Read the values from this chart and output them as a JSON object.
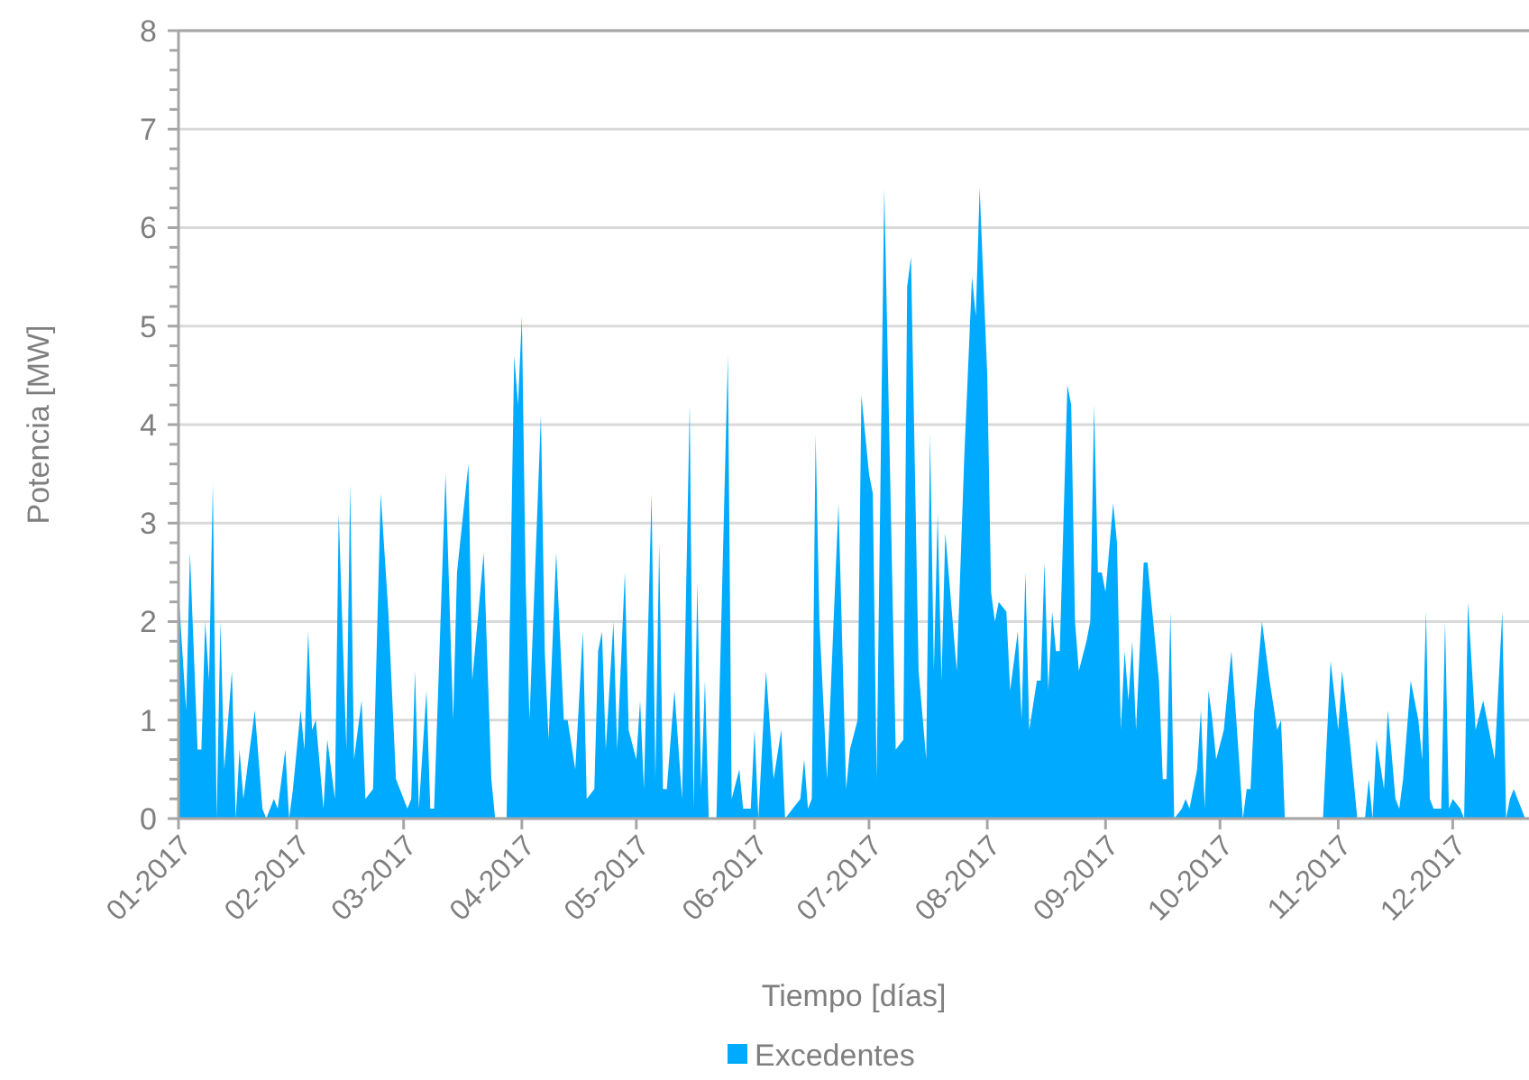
{
  "chart_data": {
    "type": "area",
    "xlabel": "Tiempo [días]",
    "ylabel": "Potencia [MW]",
    "xlim": [
      "2017-01-01",
      "2017-12-21"
    ],
    "ylim": [
      0,
      8
    ],
    "xticks": [
      {
        "value": "2017-01-01",
        "label": "01-2017"
      },
      {
        "value": "2017-02-01",
        "label": "02-2017"
      },
      {
        "value": "2017-03-01",
        "label": "03-2017"
      },
      {
        "value": "2017-04-01",
        "label": "04-2017"
      },
      {
        "value": "2017-05-01",
        "label": "05-2017"
      },
      {
        "value": "2017-06-01",
        "label": "06-2017"
      },
      {
        "value": "2017-07-01",
        "label": "07-2017"
      },
      {
        "value": "2017-08-01",
        "label": "08-2017"
      },
      {
        "value": "2017-09-01",
        "label": "09-2017"
      },
      {
        "value": "2017-10-01",
        "label": "10-2017"
      },
      {
        "value": "2017-11-01",
        "label": "11-2017"
      },
      {
        "value": "2017-12-01",
        "label": "12-2017"
      }
    ],
    "yticks": [
      0,
      {
        "value": 0.2,
        "label": null
      },
      {
        "value": 0.4,
        "label": null
      },
      {
        "value": 0.6,
        "label": null
      },
      {
        "value": 0.8,
        "label": null
      },
      1,
      {
        "value": 1.2,
        "label": null
      },
      {
        "value": 1.4,
        "label": null
      },
      {
        "value": 1.6,
        "label": null
      },
      {
        "value": 1.8,
        "label": null
      },
      2,
      {
        "value": 2.2,
        "label": null
      },
      {
        "value": 2.4,
        "label": null
      },
      {
        "value": 2.6,
        "label": null
      },
      {
        "value": 2.8,
        "label": null
      },
      3,
      {
        "value": 3.2,
        "label": null
      },
      {
        "value": 3.4,
        "label": null
      },
      {
        "value": 3.6,
        "label": null
      },
      {
        "value": 3.8,
        "label": null
      },
      4,
      {
        "value": 4.2,
        "label": null
      },
      {
        "value": 4.4,
        "label": null
      },
      {
        "value": 4.6,
        "label": null
      },
      {
        "value": 4.8,
        "label": null
      },
      5,
      {
        "value": 5.2,
        "label": null
      },
      {
        "value": 5.4,
        "label": null
      },
      {
        "value": 5.6,
        "label": null
      },
      {
        "value": 5.8,
        "label": null
      },
      6,
      {
        "value": 6.2,
        "label": null
      },
      {
        "value": 6.4,
        "label": null
      },
      {
        "value": 6.6,
        "label": null
      },
      {
        "value": 6.8,
        "label": null
      },
      7,
      {
        "value": 7.2,
        "label": null
      },
      {
        "value": 7.4,
        "label": null
      },
      {
        "value": 7.6,
        "label": null
      },
      {
        "value": 7.8,
        "label": null
      },
      8
    ],
    "grid": "y",
    "legend": "bottom",
    "series": [
      {
        "name": "Excedentes",
        "color": "#00aaff",
        "x": [
          "2017-01-01",
          "2017-01-03",
          "2017-01-04",
          "2017-01-06",
          "2017-01-07",
          "2017-01-08",
          "2017-01-09",
          "2017-01-10",
          "2017-01-11",
          "2017-01-12",
          "2017-01-13",
          "2017-01-15",
          "2017-01-16",
          "2017-01-17",
          "2017-01-18",
          "2017-01-21",
          "2017-01-23",
          "2017-01-24",
          "2017-01-26",
          "2017-01-27",
          "2017-01-29",
          "2017-01-30",
          "2017-01-31",
          "2017-02-02",
          "2017-02-03",
          "2017-02-04",
          "2017-02-05",
          "2017-02-06",
          "2017-02-08",
          "2017-02-09",
          "2017-02-11",
          "2017-02-12",
          "2017-02-14",
          "2017-02-15",
          "2017-02-16",
          "2017-02-18",
          "2017-02-19",
          "2017-02-21",
          "2017-02-23",
          "2017-02-25",
          "2017-02-27",
          "2017-03-02",
          "2017-03-03",
          "2017-03-04",
          "2017-03-05",
          "2017-03-07",
          "2017-03-08",
          "2017-03-09",
          "2017-03-12",
          "2017-03-14",
          "2017-03-15",
          "2017-03-18",
          "2017-03-19",
          "2017-03-22",
          "2017-03-24",
          "2017-03-25",
          "2017-03-28",
          "2017-03-30",
          "2017-03-31",
          "2017-04-01",
          "2017-04-02",
          "2017-04-03",
          "2017-04-06",
          "2017-04-07",
          "2017-04-08",
          "2017-04-10",
          "2017-04-12",
          "2017-04-13",
          "2017-04-15",
          "2017-04-17",
          "2017-04-18",
          "2017-04-20",
          "2017-04-21",
          "2017-04-22",
          "2017-04-23",
          "2017-04-25",
          "2017-04-26",
          "2017-04-28",
          "2017-04-29",
          "2017-05-01",
          "2017-05-02",
          "2017-05-03",
          "2017-05-05",
          "2017-05-06",
          "2017-05-07",
          "2017-05-08",
          "2017-05-09",
          "2017-05-11",
          "2017-05-13",
          "2017-05-15",
          "2017-05-16",
          "2017-05-17",
          "2017-05-18",
          "2017-05-19",
          "2017-05-20",
          "2017-05-22",
          "2017-05-25",
          "2017-05-26",
          "2017-05-28",
          "2017-05-29",
          "2017-05-31",
          "2017-06-01",
          "2017-06-02",
          "2017-06-04",
          "2017-06-06",
          "2017-06-08",
          "2017-06-09",
          "2017-06-11",
          "2017-06-13",
          "2017-06-14",
          "2017-06-15",
          "2017-06-16",
          "2017-06-17",
          "2017-06-18",
          "2017-06-20",
          "2017-06-23",
          "2017-06-25",
          "2017-06-26",
          "2017-06-28",
          "2017-06-29",
          "2017-07-01",
          "2017-07-02",
          "2017-07-03",
          "2017-07-05",
          "2017-07-08",
          "2017-07-10",
          "2017-07-11",
          "2017-07-12",
          "2017-07-14",
          "2017-07-16",
          "2017-07-17",
          "2017-07-18",
          "2017-07-19",
          "2017-07-20",
          "2017-07-21",
          "2017-07-24",
          "2017-07-26",
          "2017-07-28",
          "2017-07-29",
          "2017-07-30",
          "2017-08-01",
          "2017-08-02",
          "2017-08-03",
          "2017-08-04",
          "2017-08-06",
          "2017-08-07",
          "2017-08-09",
          "2017-08-10",
          "2017-08-11",
          "2017-08-12",
          "2017-08-14",
          "2017-08-15",
          "2017-08-16",
          "2017-08-17",
          "2017-08-18",
          "2017-08-19",
          "2017-08-20",
          "2017-08-22",
          "2017-08-23",
          "2017-08-24",
          "2017-08-25",
          "2017-08-27",
          "2017-08-28",
          "2017-08-29",
          "2017-08-30",
          "2017-08-31",
          "2017-09-01",
          "2017-09-03",
          "2017-09-04",
          "2017-09-05",
          "2017-09-06",
          "2017-09-07",
          "2017-09-08",
          "2017-09-09",
          "2017-09-11",
          "2017-09-12",
          "2017-09-15",
          "2017-09-16",
          "2017-09-17",
          "2017-09-18",
          "2017-09-19",
          "2017-09-21",
          "2017-09-22",
          "2017-09-23",
          "2017-09-25",
          "2017-09-26",
          "2017-09-27",
          "2017-09-28",
          "2017-09-29",
          "2017-09-30",
          "2017-10-02",
          "2017-10-04",
          "2017-10-06",
          "2017-10-07",
          "2017-10-08",
          "2017-10-09",
          "2017-10-10",
          "2017-10-12",
          "2017-10-14",
          "2017-10-16",
          "2017-10-17",
          "2017-10-18",
          "2017-10-28",
          "2017-10-30",
          "2017-11-01",
          "2017-11-02",
          "2017-11-04",
          "2017-11-06",
          "2017-11-08",
          "2017-11-09",
          "2017-11-10",
          "2017-11-11",
          "2017-11-13",
          "2017-11-14",
          "2017-11-16",
          "2017-11-17",
          "2017-11-18",
          "2017-11-20",
          "2017-11-22",
          "2017-11-23",
          "2017-11-24",
          "2017-11-25",
          "2017-11-26",
          "2017-11-28",
          "2017-11-29",
          "2017-11-30",
          "2017-12-01",
          "2017-12-03",
          "2017-12-04",
          "2017-12-05",
          "2017-12-07",
          "2017-12-09",
          "2017-12-10",
          "2017-12-12",
          "2017-12-14",
          "2017-12-15",
          "2017-12-16",
          "2017-12-17",
          "2017-12-18",
          "2017-12-19",
          "2017-12-20"
        ],
        "values": [
          2.3,
          1.1,
          2.7,
          0.7,
          0.7,
          2.0,
          1.4,
          3.4,
          0,
          2.0,
          0.5,
          1.5,
          0,
          0.7,
          0.2,
          1.1,
          0.1,
          0,
          0.2,
          0.1,
          0.7,
          0,
          0.3,
          1.1,
          0.7,
          1.9,
          0.9,
          1.0,
          0.1,
          0.8,
          0.2,
          3.1,
          0.7,
          3.4,
          0.6,
          1.2,
          0.2,
          0.3,
          3.3,
          2.1,
          0.4,
          0.1,
          0.2,
          1.5,
          0.1,
          1.3,
          0.1,
          0.1,
          3.5,
          1.0,
          2.5,
          3.6,
          1.4,
          2.7,
          0.4,
          0,
          0,
          4.7,
          4.2,
          5.1,
          2.4,
          1.0,
          4.1,
          1.7,
          0.8,
          2.7,
          1.0,
          1.0,
          0.5,
          1.9,
          0.2,
          0.3,
          1.7,
          1.9,
          0.7,
          2.0,
          0.7,
          2.5,
          0.9,
          0.6,
          1.2,
          0.3,
          3.3,
          0.4,
          2.8,
          0.3,
          0.3,
          1.3,
          0.2,
          4.2,
          0.1,
          2.4,
          0.3,
          1.4,
          0,
          0,
          4.7,
          0.2,
          0.5,
          0.1,
          0.1,
          0.9,
          0,
          1.5,
          0.4,
          0.9,
          0,
          0.1,
          0.2,
          0.6,
          0.1,
          0.2,
          3.9,
          2.0,
          0.4,
          3.2,
          0.3,
          0.7,
          1.0,
          4.3,
          3.5,
          3.3,
          0.4,
          6.4,
          0.7,
          0.8,
          5.4,
          5.7,
          1.5,
          0.6,
          3.9,
          1.5,
          3.1,
          1.4,
          2.9,
          1.5,
          3.7,
          5.5,
          5.1,
          6.4,
          4.5,
          2.3,
          2.0,
          2.2,
          2.1,
          1.3,
          1.9,
          1.0,
          2.5,
          0.9,
          1.4,
          1.4,
          2.6,
          1.3,
          2.1,
          1.7,
          1.7,
          4.4,
          4.2,
          2.0,
          1.5,
          1.8,
          2.0,
          4.2,
          2.5,
          2.5,
          2.3,
          3.2,
          2.8,
          0.9,
          1.7,
          1.2,
          1.8,
          0.9,
          2.6,
          2.6,
          1.4,
          0.4,
          0.4,
          2.1,
          0,
          0.1,
          0.2,
          0.1,
          0.5,
          1.1,
          0.1,
          1.3,
          1.0,
          0.6,
          0.9,
          1.7,
          0.6,
          0,
          0.3,
          0.3,
          1.1,
          2.0,
          1.4,
          0.9,
          1.0,
          0,
          0,
          1.6,
          0.9,
          1.5,
          0.8,
          0,
          0,
          0.4,
          0,
          0.8,
          0.3,
          1.1,
          0.2,
          0.1,
          0.4,
          1.4,
          1.0,
          0.6,
          2.1,
          0.2,
          0.1,
          0.1,
          2.0,
          0.1,
          0.2,
          0.1,
          0,
          2.2,
          0.9,
          1.2,
          1.0,
          0.6,
          2.1,
          0,
          0.2,
          0.3,
          0.2,
          0.1,
          0
        ]
      }
    ]
  }
}
